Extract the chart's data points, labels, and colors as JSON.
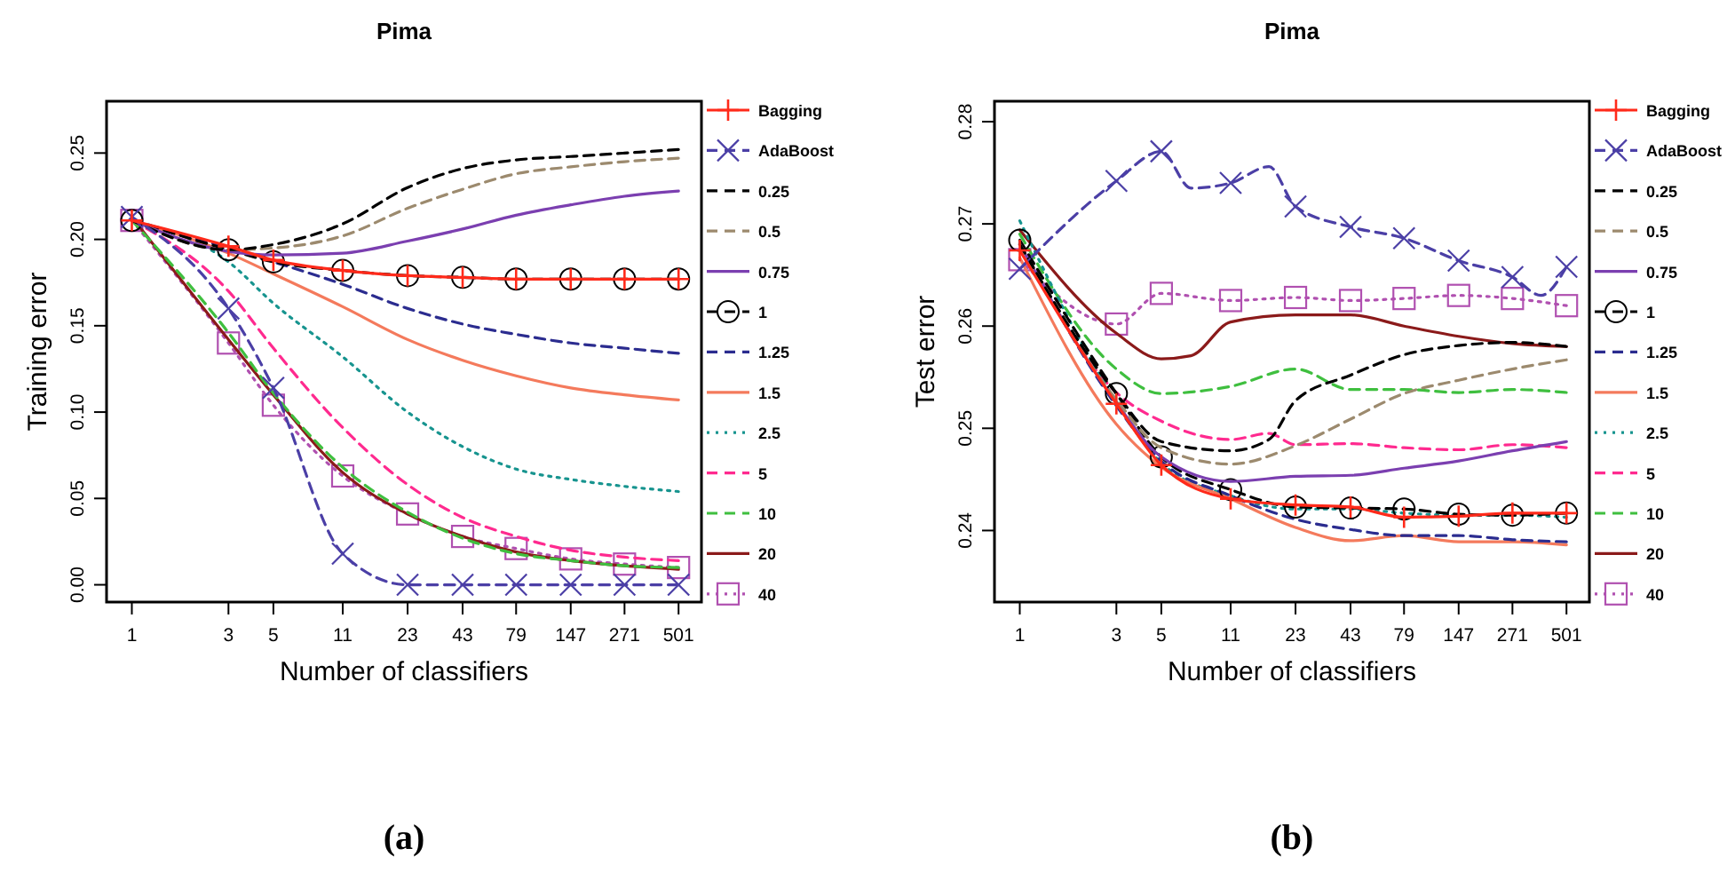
{
  "chart_data": [
    {
      "type": "line",
      "title": "Pima",
      "xlabel": "Number of classifiers",
      "ylabel": "Training error",
      "annotations": [
        "(a)"
      ],
      "log": "x",
      "legend": "right",
      "xlim": [
        0.75,
        650
      ],
      "xticks": [
        1,
        3,
        5,
        11,
        23,
        43,
        79,
        147,
        271,
        501
      ],
      "ylim": [
        -0.01,
        0.28
      ],
      "yticks": [
        {
          "value": 0,
          "label": "0.00"
        },
        {
          "value": 0.05,
          "label": "0.05"
        },
        {
          "value": 0.1,
          "label": "0.10"
        },
        {
          "value": 0.15,
          "label": "0.15"
        },
        {
          "value": 0.2,
          "label": "0.20"
        },
        {
          "value": 0.25,
          "label": "0.25"
        }
      ],
      "x": [
        1,
        3,
        5,
        11,
        23,
        43,
        79,
        147,
        271,
        501
      ],
      "series": [
        {
          "name": "Bagging",
          "color": "#ff2a1a",
          "marker": "cross",
          "line_style": "solid",
          "values": [
            0.211,
            0.196,
            0.188,
            0.182,
            0.179,
            0.178,
            0.177,
            0.177,
            0.177,
            0.177
          ]
        },
        {
          "name": "AdaBoost",
          "color": "#4b3fa6",
          "marker": "x",
          "line_style": "dashed",
          "values": [
            0.213,
            0.16,
            0.114,
            0.018,
            0.0,
            0.0,
            0.0,
            0.0,
            0.0,
            0.0
          ]
        },
        {
          "name": "0.25",
          "color": "#000000",
          "line_style": "dashed",
          "values": [
            0.211,
            0.194,
            0.197,
            0.209,
            0.23,
            0.241,
            0.246,
            0.248,
            0.25,
            0.252
          ]
        },
        {
          "name": "0.5",
          "color": "#9c8a6e",
          "line_style": "dashed",
          "values": [
            0.211,
            0.194,
            0.195,
            0.202,
            0.218,
            0.229,
            0.238,
            0.242,
            0.245,
            0.247
          ]
        },
        {
          "name": "0.75",
          "color": "#7b3fb0",
          "line_style": "solid",
          "values": [
            0.211,
            0.193,
            0.191,
            0.192,
            0.199,
            0.206,
            0.214,
            0.22,
            0.225,
            0.228
          ]
        },
        {
          "name": "1",
          "color": "#000000",
          "marker": "circle",
          "line_style": "dashed",
          "values": [
            0.211,
            0.194,
            0.187,
            0.182,
            0.179,
            0.178,
            0.177,
            0.177,
            0.177,
            0.177
          ]
        },
        {
          "name": "1.25",
          "color": "#2b2c8f",
          "line_style": "dashed",
          "values": [
            0.211,
            0.195,
            0.187,
            0.174,
            0.16,
            0.151,
            0.145,
            0.14,
            0.137,
            0.134
          ]
        },
        {
          "name": "1.5",
          "color": "#f47a5c",
          "line_style": "solid",
          "values": [
            0.211,
            0.192,
            0.18,
            0.161,
            0.142,
            0.13,
            0.121,
            0.114,
            0.11,
            0.107
          ]
        },
        {
          "name": "2.5",
          "color": "#17948f",
          "line_style": "dotted",
          "values": [
            0.211,
            0.187,
            0.163,
            0.132,
            0.1,
            0.08,
            0.067,
            0.061,
            0.057,
            0.054
          ]
        },
        {
          "name": "5",
          "color": "#ff2a8f",
          "line_style": "dashed",
          "values": [
            0.211,
            0.17,
            0.137,
            0.091,
            0.058,
            0.039,
            0.028,
            0.02,
            0.016,
            0.014
          ]
        },
        {
          "name": "10",
          "color": "#3fbf3f",
          "line_style": "dashed",
          "values": [
            0.211,
            0.146,
            0.111,
            0.068,
            0.042,
            0.027,
            0.018,
            0.014,
            0.011,
            0.01
          ]
        },
        {
          "name": "20",
          "color": "#8b1a1a",
          "line_style": "solid",
          "values": [
            0.213,
            0.142,
            0.11,
            0.065,
            0.041,
            0.028,
            0.019,
            0.014,
            0.011,
            0.009
          ]
        },
        {
          "name": "40",
          "color": "#b050b0",
          "marker": "square",
          "line_style": "dotted",
          "values": [
            0.211,
            0.14,
            0.104,
            0.063,
            0.041,
            0.028,
            0.021,
            0.015,
            0.012,
            0.01
          ]
        }
      ]
    },
    {
      "type": "line",
      "title": "Pima",
      "xlabel": "Number of classifiers",
      "ylabel": "Test error",
      "annotations": [
        "(b)"
      ],
      "log": "x",
      "legend": "right",
      "xlim": [
        0.75,
        650
      ],
      "xticks": [
        1,
        3,
        5,
        11,
        23,
        43,
        79,
        147,
        271,
        501
      ],
      "ylim": [
        0.233,
        0.282
      ],
      "yticks": [
        0.24,
        0.25,
        0.26,
        0.27,
        0.28
      ],
      "x": [
        1,
        3,
        5,
        11,
        23,
        43,
        79,
        147,
        271,
        501
      ],
      "series": [
        {
          "name": "Bagging",
          "color": "#ff2a1a",
          "marker": "cross",
          "line_style": "solid",
          "values": [
            0.2674,
            0.2524,
            0.2464,
            0.2431,
            0.2425,
            0.2423,
            0.2413,
            0.2414,
            0.2417,
            0.2417
          ]
        },
        {
          "name": "AdaBoost",
          "color": "#4b3fa6",
          "marker": "x",
          "line_style": "dashed",
          "x": [
            1,
            3,
            5,
            7,
            11,
            17,
            23,
            43,
            79,
            147,
            271,
            375,
            501
          ],
          "values": [
            0.2656,
            0.2742,
            0.2771,
            0.2735,
            0.274,
            0.2756,
            0.2717,
            0.2697,
            0.2686,
            0.2664,
            0.2648,
            0.263,
            0.2658
          ]
        },
        {
          "name": "0.25",
          "color": "#000000",
          "line_style": "dashed",
          "x": [
            1,
            3,
            5,
            11,
            17,
            23,
            43,
            79,
            147,
            271,
            501
          ],
          "values": [
            0.268,
            0.2534,
            0.2487,
            0.2478,
            0.2489,
            0.2527,
            0.2552,
            0.2572,
            0.2581,
            0.2584,
            0.258
          ]
        },
        {
          "name": "0.5",
          "color": "#9c8a6e",
          "line_style": "dashed",
          "values": [
            0.268,
            0.2528,
            0.2481,
            0.2465,
            0.2483,
            0.2509,
            0.2534,
            0.2547,
            0.2558,
            0.2567
          ]
        },
        {
          "name": "0.75",
          "color": "#7b3fb0",
          "line_style": "solid",
          "values": [
            0.268,
            0.2525,
            0.2472,
            0.2448,
            0.2453,
            0.2454,
            0.2461,
            0.2468,
            0.2478,
            0.2487
          ]
        },
        {
          "name": "1",
          "color": "#000000",
          "marker": "circle",
          "line_style": "dashed",
          "values": [
            0.2684,
            0.2534,
            0.2472,
            0.244,
            0.2423,
            0.2422,
            0.2421,
            0.2416,
            0.2415,
            0.2417
          ]
        },
        {
          "name": "1.25",
          "color": "#2b2c8f",
          "line_style": "dashed",
          "values": [
            0.2682,
            0.2522,
            0.2468,
            0.2434,
            0.2411,
            0.2401,
            0.2395,
            0.2395,
            0.2391,
            0.2389
          ]
        },
        {
          "name": "1.5",
          "color": "#f47a5c",
          "line_style": "solid",
          "values": [
            0.2667,
            0.2504,
            0.2462,
            0.2431,
            0.2403,
            0.239,
            0.2395,
            0.2389,
            0.2389,
            0.2386
          ]
        },
        {
          "name": "2.5",
          "color": "#17948f",
          "line_style": "dotted",
          "values": [
            0.2703,
            0.2526,
            0.2466,
            0.2434,
            0.2421,
            0.2421,
            0.2417,
            0.2415,
            0.2415,
            0.2413
          ]
        },
        {
          "name": "5",
          "color": "#ff2a8f",
          "line_style": "dashed",
          "x": [
            1,
            3,
            5,
            11,
            17,
            23,
            43,
            79,
            147,
            271,
            501
          ],
          "values": [
            0.268,
            0.2535,
            0.2507,
            0.2489,
            0.2495,
            0.2484,
            0.2485,
            0.2481,
            0.2479,
            0.2484,
            0.2481
          ]
        },
        {
          "name": "10",
          "color": "#3fbf3f",
          "line_style": "dashed",
          "values": [
            0.269,
            0.2558,
            0.2534,
            0.2541,
            0.2558,
            0.2538,
            0.2538,
            0.2535,
            0.2538,
            0.2535
          ]
        },
        {
          "name": "20",
          "color": "#8b1a1a",
          "line_style": "solid",
          "x": [
            1,
            3,
            5,
            7,
            11,
            23,
            43,
            79,
            147,
            271,
            501
          ],
          "values": [
            0.2694,
            0.2593,
            0.2568,
            0.2571,
            0.2604,
            0.2611,
            0.2611,
            0.26,
            0.259,
            0.2583,
            0.258
          ]
        },
        {
          "name": "40",
          "color": "#b050b0",
          "marker": "square",
          "line_style": "dotted",
          "values": [
            0.2665,
            0.2602,
            0.2632,
            0.2625,
            0.2628,
            0.2625,
            0.2627,
            0.263,
            0.2627,
            0.262
          ]
        }
      ]
    }
  ]
}
